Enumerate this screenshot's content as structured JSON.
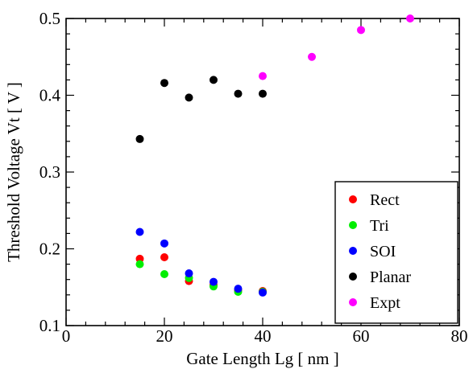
{
  "chart_data": {
    "type": "scatter",
    "xlabel": "Gate Length Lg [ nm ]",
    "ylabel": "Threshold Voltage Vt [ V ]",
    "xlim": [
      0,
      80
    ],
    "ylim": [
      0.1,
      0.5
    ],
    "x_ticks": [
      "0",
      "20",
      "40",
      "60",
      "80"
    ],
    "y_ticks": [
      "0.1",
      "0.2",
      "0.3",
      "0.4",
      "0.5"
    ],
    "grid": false,
    "legend_position": "bottom-right",
    "series": [
      {
        "name": "Rect",
        "color": "#ff0000",
        "x": [
          15,
          20,
          25,
          30,
          35,
          40
        ],
        "y": [
          0.187,
          0.189,
          0.158,
          0.153,
          0.146,
          0.145
        ]
      },
      {
        "name": "Tri",
        "color": "#00ee00",
        "x": [
          15,
          20,
          25,
          30,
          35,
          40
        ],
        "y": [
          0.18,
          0.167,
          0.162,
          0.151,
          0.144,
          0.144
        ]
      },
      {
        "name": "SOI",
        "color": "#0000ff",
        "x": [
          15,
          20,
          25,
          30,
          35,
          40
        ],
        "y": [
          0.222,
          0.207,
          0.168,
          0.157,
          0.148,
          0.143
        ]
      },
      {
        "name": "Planar",
        "color": "#000000",
        "x": [
          15,
          20,
          25,
          30,
          35,
          40
        ],
        "y": [
          0.343,
          0.416,
          0.397,
          0.42,
          0.402,
          0.402
        ]
      },
      {
        "name": "Expt",
        "color": "#ff00ff",
        "x": [
          40,
          50,
          60,
          70
        ],
        "y": [
          0.425,
          0.45,
          0.485,
          0.5
        ]
      }
    ]
  }
}
